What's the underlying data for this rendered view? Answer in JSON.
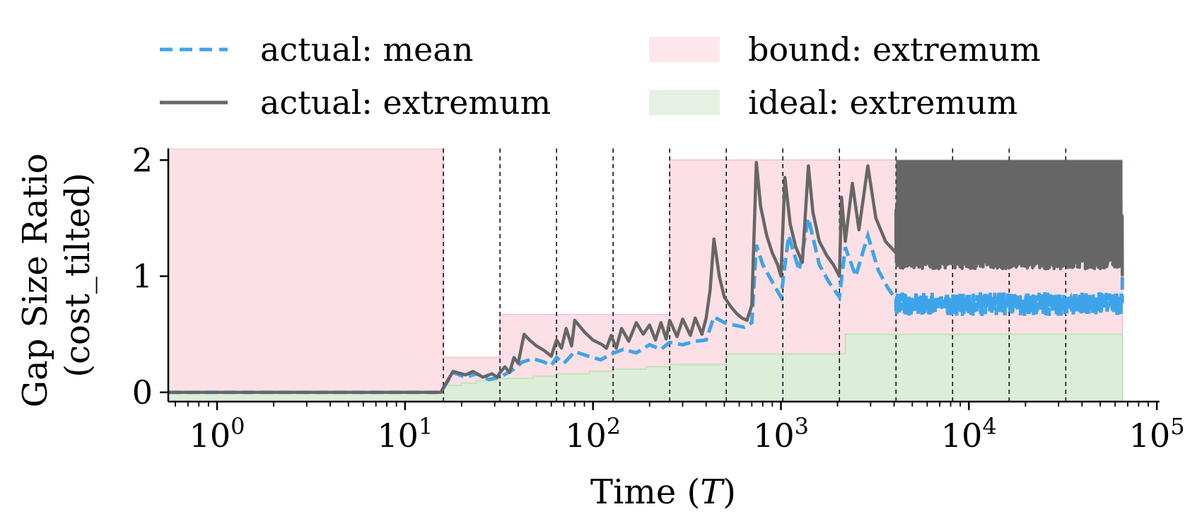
{
  "chart_data": {
    "type": "line",
    "xlabel": "Time (T)",
    "ylabel": "Gap Size Ratio\n(cost_tilted)",
    "xscale": "log",
    "xlim": [
      0.55,
      65536
    ],
    "ylim": [
      -0.08,
      2.1
    ],
    "xticks": [
      1,
      10,
      100,
      1000,
      10000,
      100000
    ],
    "xtick_labels": [
      {
        "base": "10",
        "exp": "0"
      },
      {
        "base": "10",
        "exp": "1"
      },
      {
        "base": "10",
        "exp": "2"
      },
      {
        "base": "10",
        "exp": "3"
      },
      {
        "base": "10",
        "exp": "4"
      },
      {
        "base": "10",
        "exp": "5"
      }
    ],
    "yticks": [
      0,
      1,
      2
    ],
    "ytick_labels": [
      "0",
      "1",
      "2"
    ],
    "grid": false,
    "legend_position": "top",
    "vlines": [
      16,
      32,
      64,
      128,
      256,
      512,
      1024,
      2048,
      4096,
      8192,
      16384,
      32768
    ],
    "series": [
      {
        "name": "actual: mean",
        "style": "dashed",
        "color": "#3ea4ea"
      },
      {
        "name": "actual: extremum",
        "style": "solid",
        "color": "#666666"
      },
      {
        "name": "bound: extremum",
        "style": "fill",
        "color": "#fce0e6",
        "steps": [
          [
            0.55,
            2.1
          ],
          [
            16,
            0.3
          ],
          [
            32,
            0.67
          ],
          [
            256,
            2.0
          ],
          [
            65536,
            2.0
          ]
        ]
      },
      {
        "name": "ideal: extremum",
        "style": "fill",
        "color": "#dcedd8",
        "steps": [
          [
            0.55,
            0
          ],
          [
            16,
            0.06
          ],
          [
            20,
            0.08
          ],
          [
            24,
            0.1
          ],
          [
            32,
            0.12
          ],
          [
            48,
            0.14
          ],
          [
            64,
            0.16
          ],
          [
            96,
            0.18
          ],
          [
            128,
            0.2
          ],
          [
            192,
            0.22
          ],
          [
            256,
            0.24
          ],
          [
            512,
            0.33
          ],
          [
            2200,
            0.5
          ],
          [
            65536,
            0.5
          ]
        ]
      }
    ],
    "extremum_points": [
      [
        0.55,
        0
      ],
      [
        15.5,
        0
      ],
      [
        18,
        0.18
      ],
      [
        21,
        0.15
      ],
      [
        23,
        0.18
      ],
      [
        26,
        0.13
      ],
      [
        29,
        0.16
      ],
      [
        31,
        0.13
      ],
      [
        32,
        0.17
      ],
      [
        34,
        0.22
      ],
      [
        36,
        0.17
      ],
      [
        38,
        0.3
      ],
      [
        40,
        0.25
      ],
      [
        43,
        0.5
      ],
      [
        46,
        0.45
      ],
      [
        50,
        0.4
      ],
      [
        55,
        0.36
      ],
      [
        58,
        0.33
      ],
      [
        60,
        0.31
      ],
      [
        64,
        0.45
      ],
      [
        68,
        0.38
      ],
      [
        72,
        0.55
      ],
      [
        77,
        0.4
      ],
      [
        80,
        0.62
      ],
      [
        90,
        0.52
      ],
      [
        100,
        0.45
      ],
      [
        112,
        0.41
      ],
      [
        118,
        0.38
      ],
      [
        125,
        0.49
      ],
      [
        133,
        0.38
      ],
      [
        142,
        0.55
      ],
      [
        155,
        0.44
      ],
      [
        170,
        0.6
      ],
      [
        185,
        0.5
      ],
      [
        200,
        0.58
      ],
      [
        215,
        0.45
      ],
      [
        230,
        0.6
      ],
      [
        245,
        0.46
      ],
      [
        256,
        0.62
      ],
      [
        280,
        0.48
      ],
      [
        300,
        0.63
      ],
      [
        330,
        0.49
      ],
      [
        350,
        0.64
      ],
      [
        380,
        0.5
      ],
      [
        400,
        0.64
      ],
      [
        420,
        0.88
      ],
      [
        440,
        1.32
      ],
      [
        470,
        1.0
      ],
      [
        500,
        0.82
      ],
      [
        540,
        0.74
      ],
      [
        580,
        0.68
      ],
      [
        620,
        0.64
      ],
      [
        660,
        0.62
      ],
      [
        700,
        0.75
      ],
      [
        740,
        1.98
      ],
      [
        780,
        1.6
      ],
      [
        840,
        1.35
      ],
      [
        900,
        1.2
      ],
      [
        960,
        1.1
      ],
      [
        1000,
        1.0
      ],
      [
        1050,
        1.85
      ],
      [
        1120,
        1.45
      ],
      [
        1200,
        1.25
      ],
      [
        1300,
        1.12
      ],
      [
        1400,
        1.95
      ],
      [
        1480,
        1.55
      ],
      [
        1600,
        1.3
      ],
      [
        1750,
        1.18
      ],
      [
        1900,
        1.1
      ],
      [
        2048,
        1.0
      ],
      [
        2100,
        1.68
      ],
      [
        2200,
        1.3
      ],
      [
        2400,
        1.8
      ],
      [
        2600,
        1.4
      ],
      [
        2900,
        1.95
      ],
      [
        3200,
        1.5
      ],
      [
        3600,
        1.3
      ],
      [
        4096,
        1.2
      ]
    ],
    "mean_points": [
      [
        0.55,
        0
      ],
      [
        15.5,
        0
      ],
      [
        18,
        0.17
      ],
      [
        21,
        0.13
      ],
      [
        24,
        0.16
      ],
      [
        28,
        0.11
      ],
      [
        32,
        0.13
      ],
      [
        38,
        0.2
      ],
      [
        42,
        0.26
      ],
      [
        48,
        0.29
      ],
      [
        55,
        0.26
      ],
      [
        60,
        0.23
      ],
      [
        64,
        0.3
      ],
      [
        70,
        0.25
      ],
      [
        80,
        0.35
      ],
      [
        95,
        0.31
      ],
      [
        110,
        0.28
      ],
      [
        125,
        0.33
      ],
      [
        145,
        0.37
      ],
      [
        170,
        0.34
      ],
      [
        200,
        0.41
      ],
      [
        230,
        0.37
      ],
      [
        256,
        0.43
      ],
      [
        300,
        0.41
      ],
      [
        350,
        0.44
      ],
      [
        400,
        0.45
      ],
      [
        440,
        0.65
      ],
      [
        500,
        0.6
      ],
      [
        560,
        0.58
      ],
      [
        640,
        0.56
      ],
      [
        700,
        0.6
      ],
      [
        740,
        1.27
      ],
      [
        800,
        1.1
      ],
      [
        900,
        0.95
      ],
      [
        1000,
        0.82
      ],
      [
        1100,
        1.35
      ],
      [
        1250,
        1.05
      ],
      [
        1400,
        1.5
      ],
      [
        1600,
        1.1
      ],
      [
        1800,
        0.95
      ],
      [
        2048,
        0.82
      ],
      [
        2200,
        1.25
      ],
      [
        2500,
        1.0
      ],
      [
        2900,
        1.35
      ],
      [
        3300,
        1.05
      ],
      [
        3700,
        0.9
      ],
      [
        4096,
        0.8
      ]
    ]
  }
}
